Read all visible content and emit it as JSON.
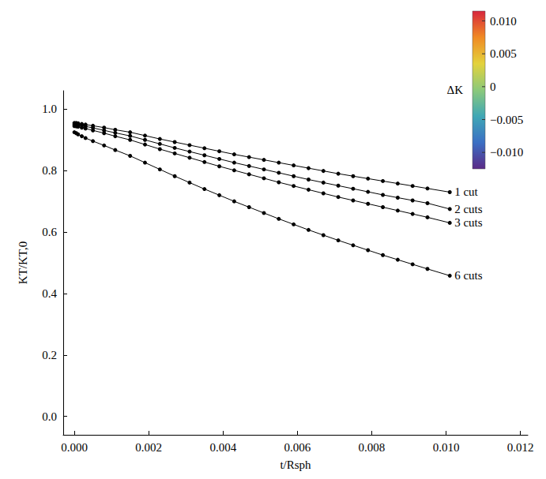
{
  "chart_data": {
    "type": "line",
    "x_label": "t/Rsph",
    "y_label": "KT/KT,0",
    "x": [
      0,
      5e-05,
      0.0001,
      0.0002,
      0.0003,
      0.0005,
      0.0008,
      0.0011,
      0.0015,
      0.0019,
      0.0023,
      0.0027,
      0.0031,
      0.0035,
      0.0039,
      0.0043,
      0.0047,
      0.0051,
      0.0055,
      0.0059,
      0.0063,
      0.0067,
      0.0071,
      0.0075,
      0.0079,
      0.0083,
      0.0087,
      0.0091,
      0.0095,
      0.0101
    ],
    "series": [
      {
        "name": "1 cut",
        "color": "#000000",
        "marker": "circle",
        "line_style": "solid",
        "values": [
          0.955,
          0.955,
          0.954,
          0.952,
          0.95,
          0.946,
          0.94,
          0.933,
          0.925,
          0.914,
          0.903,
          0.893,
          0.883,
          0.873,
          0.863,
          0.853,
          0.844,
          0.835,
          0.826,
          0.817,
          0.808,
          0.799,
          0.79,
          0.782,
          0.774,
          0.766,
          0.758,
          0.75,
          0.742,
          0.73
        ]
      },
      {
        "name": "2 cuts",
        "color": "#000000",
        "marker": "circle",
        "line_style": "solid",
        "values": [
          0.95,
          0.95,
          0.949,
          0.947,
          0.944,
          0.939,
          0.931,
          0.923,
          0.913,
          0.9,
          0.887,
          0.874,
          0.862,
          0.85,
          0.838,
          0.826,
          0.815,
          0.804,
          0.793,
          0.782,
          0.771,
          0.761,
          0.751,
          0.741,
          0.731,
          0.721,
          0.712,
          0.703,
          0.694,
          0.675
        ]
      },
      {
        "name": "3 cuts",
        "color": "#000000",
        "marker": "circle",
        "line_style": "solid",
        "values": [
          0.945,
          0.944,
          0.943,
          0.94,
          0.937,
          0.931,
          0.922,
          0.912,
          0.9,
          0.885,
          0.87,
          0.856,
          0.842,
          0.828,
          0.814,
          0.801,
          0.788,
          0.775,
          0.762,
          0.75,
          0.738,
          0.726,
          0.714,
          0.703,
          0.692,
          0.681,
          0.67,
          0.659,
          0.648,
          0.63
        ]
      },
      {
        "name": "6 cuts",
        "color": "#000000",
        "marker": "circle",
        "line_style": "solid",
        "values": [
          0.925,
          0.922,
          0.918,
          0.912,
          0.906,
          0.896,
          0.882,
          0.867,
          0.848,
          0.826,
          0.804,
          0.782,
          0.761,
          0.74,
          0.72,
          0.7,
          0.681,
          0.662,
          0.643,
          0.625,
          0.607,
          0.59,
          0.573,
          0.557,
          0.541,
          0.525,
          0.51,
          0.495,
          0.48,
          0.458
        ]
      }
    ],
    "xlim": [
      -0.0003,
      0.0122
    ],
    "xticks": [
      {
        "value": 0,
        "label": "0.000"
      },
      {
        "value": 0.002,
        "label": "0.002"
      },
      {
        "value": 0.004,
        "label": "0.004"
      },
      {
        "value": 0.006,
        "label": "0.006"
      },
      {
        "value": 0.008,
        "label": "0.008"
      },
      {
        "value": 0.01,
        "label": "0.010"
      },
      {
        "value": 0.012,
        "label": "0.012"
      }
    ],
    "ylim": [
      -0.06,
      1.06
    ],
    "yticks": [
      {
        "value": 0,
        "label": "0.0"
      },
      {
        "value": 0.2,
        "label": "0.2"
      },
      {
        "value": 0.4,
        "label": "0.4"
      },
      {
        "value": 0.6,
        "label": "0.6"
      },
      {
        "value": 0.8,
        "label": "0.8"
      },
      {
        "value": 1,
        "label": "1.0"
      }
    ],
    "grid": false,
    "colorbar": {
      "title": "ΔK",
      "range": [
        -0.0125,
        0.0115
      ],
      "ticks": [
        {
          "value": 0.01,
          "label": "0.010"
        },
        {
          "value": 0.005,
          "label": "0.005"
        },
        {
          "value": 0,
          "label": "0"
        },
        {
          "value": -0.005,
          "label": "−0.005"
        },
        {
          "value": -0.01,
          "label": "−0.010"
        }
      ],
      "colors": [
        "#d7263d",
        "#f08a24",
        "#e3d23c",
        "#8cc97a",
        "#3fa7b5",
        "#3b6fc4",
        "#5b2a86"
      ]
    }
  }
}
